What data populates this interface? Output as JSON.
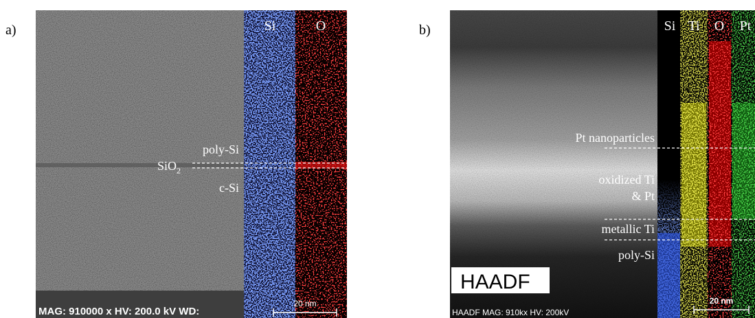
{
  "panel_a": {
    "label": "a)",
    "channels": [
      "Si",
      "O"
    ],
    "layers": {
      "poly_si": "poly-Si",
      "sio2": {
        "text": "SiO",
        "subscript": "2"
      },
      "c_si": "c-Si"
    },
    "info_bar": "MAG: 910000 x  HV: 200.0 kV  WD:",
    "scale_bar": "20 nm"
  },
  "panel_b": {
    "label": "b)",
    "channels": [
      "Si",
      "Ti",
      "O",
      "Pt"
    ],
    "layers": {
      "pt": "Pt  nanoparticles",
      "oxidized_1": "oxidized Ti",
      "oxidized_2": "& Pt",
      "metallic": "metallic Ti",
      "poly_si": "poly-Si"
    },
    "mode_box": "HAADF",
    "info_bar": "HAADF  MAG: 910kx  HV: 200kV",
    "scale_bar": "20 nm"
  }
}
